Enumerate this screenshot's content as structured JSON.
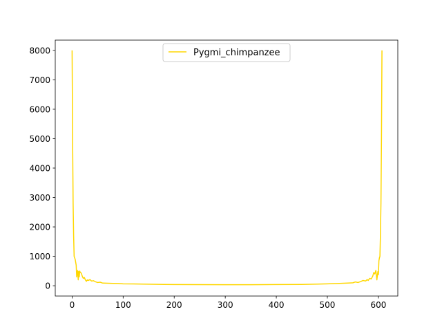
{
  "chart_data": {
    "type": "line",
    "title": "",
    "xlabel": "",
    "ylabel": "",
    "xlim": [
      -33,
      638
    ],
    "ylim": [
      -350,
      8350
    ],
    "xticks": [
      0,
      100,
      200,
      300,
      400,
      500,
      600
    ],
    "yticks": [
      0,
      1000,
      2000,
      3000,
      4000,
      5000,
      6000,
      7000,
      8000
    ],
    "grid": false,
    "legend_position": "top-center",
    "series": [
      {
        "name": "Pygmi_chimpanzee",
        "color": "#FFD700",
        "points": [
          [
            0,
            8000
          ],
          [
            1,
            5000
          ],
          [
            2,
            2800
          ],
          [
            3,
            1700
          ],
          [
            4,
            1000
          ],
          [
            6,
            900
          ],
          [
            8,
            700
          ],
          [
            9,
            300
          ],
          [
            10,
            420
          ],
          [
            11,
            520
          ],
          [
            12,
            200
          ],
          [
            13,
            480
          ],
          [
            14,
            300
          ],
          [
            15,
            500
          ],
          [
            16,
            450
          ],
          [
            18,
            430
          ],
          [
            20,
            320
          ],
          [
            22,
            250
          ],
          [
            24,
            280
          ],
          [
            26,
            200
          ],
          [
            28,
            150
          ],
          [
            30,
            200
          ],
          [
            32,
            180
          ],
          [
            35,
            210
          ],
          [
            38,
            160
          ],
          [
            42,
            170
          ],
          [
            45,
            140
          ],
          [
            50,
            110
          ],
          [
            55,
            120
          ],
          [
            60,
            90
          ],
          [
            70,
            85
          ],
          [
            80,
            80
          ],
          [
            90,
            75
          ],
          [
            100,
            65
          ],
          [
            120,
            60
          ],
          [
            140,
            55
          ],
          [
            160,
            50
          ],
          [
            180,
            45
          ],
          [
            200,
            40
          ],
          [
            250,
            38
          ],
          [
            300,
            35
          ],
          [
            350,
            35
          ],
          [
            400,
            40
          ],
          [
            450,
            45
          ],
          [
            480,
            55
          ],
          [
            500,
            65
          ],
          [
            520,
            75
          ],
          [
            540,
            90
          ],
          [
            550,
            100
          ],
          [
            555,
            130
          ],
          [
            560,
            110
          ],
          [
            565,
            140
          ],
          [
            570,
            180
          ],
          [
            575,
            160
          ],
          [
            578,
            210
          ],
          [
            580,
            180
          ],
          [
            583,
            250
          ],
          [
            586,
            230
          ],
          [
            589,
            330
          ],
          [
            591,
            450
          ],
          [
            593,
            400
          ],
          [
            595,
            520
          ],
          [
            597,
            200
          ],
          [
            599,
            480
          ],
          [
            600,
            380
          ],
          [
            601,
            850
          ],
          [
            602,
            950
          ],
          [
            603,
            1000
          ],
          [
            604,
            1750
          ],
          [
            605,
            2800
          ],
          [
            606,
            5000
          ],
          [
            607,
            8000
          ]
        ]
      }
    ]
  }
}
